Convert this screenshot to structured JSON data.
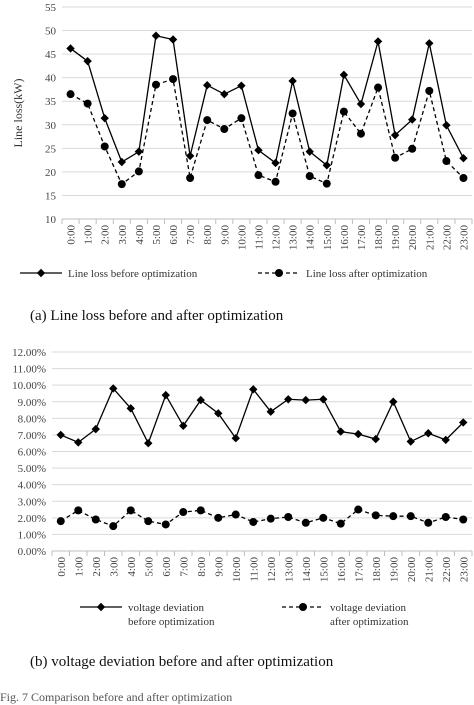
{
  "chart_data": [
    {
      "type": "line",
      "ylabel": "Line loss(kW)",
      "ylim": [
        10,
        55
      ],
      "yticks": [
        10,
        15,
        20,
        25,
        30,
        35,
        40,
        45,
        50,
        55
      ],
      "categories": [
        "0:00",
        "1:00",
        "2:00",
        "3:00",
        "4:00",
        "5:00",
        "6:00",
        "7:00",
        "8:00",
        "9:00",
        "10:00",
        "11:00",
        "12:00",
        "13:00",
        "14:00",
        "15:00",
        "16:00",
        "17:00",
        "18:00",
        "19:00",
        "20:00",
        "21:00",
        "22:00",
        "23:00"
      ],
      "series": [
        {
          "name": "Line loss before optimization",
          "style": "solid",
          "marker": "diamond",
          "values": [
            46.2,
            43.5,
            31.4,
            22.1,
            24.3,
            48.9,
            48.1,
            23.4,
            38.4,
            36.5,
            38.3,
            24.6,
            21.9,
            39.3,
            24.3,
            21.4,
            40.6,
            34.4,
            47.7,
            27.8,
            31.1,
            47.3,
            29.9,
            22.9
          ]
        },
        {
          "name": "Line loss after optimization",
          "style": "dashed",
          "marker": "circle",
          "values": [
            36.5,
            34.5,
            25.4,
            17.4,
            20.1,
            38.5,
            39.7,
            18.7,
            31.0,
            29.1,
            31.4,
            19.3,
            17.9,
            32.4,
            19.1,
            17.5,
            32.8,
            28.1,
            37.9,
            23.0,
            24.9,
            37.2,
            22.3,
            18.7
          ]
        }
      ],
      "legend_position": "bottom",
      "caption": "(a) Line loss before and after optimization"
    },
    {
      "type": "line",
      "ylabel": "",
      "ylim": [
        0,
        12
      ],
      "yticks": [
        "0.00%",
        "1.00%",
        "2.00%",
        "3.00%",
        "4.00%",
        "5.00%",
        "6.00%",
        "7.00%",
        "8.00%",
        "9.00%",
        "10.00%",
        "11.00%",
        "12.00%"
      ],
      "categories": [
        "0:00",
        "1:00",
        "2:00",
        "3:00",
        "4:00",
        "5:00",
        "6:00",
        "7:00",
        "8:00",
        "9:00",
        "10:00",
        "11:00",
        "12:00",
        "13:00",
        "14:00",
        "15:00",
        "16:00",
        "17:00",
        "18:00",
        "19:00",
        "20:00",
        "21:00",
        "22:00",
        "23:00"
      ],
      "series": [
        {
          "name_lines": [
            "voltage deviation",
            "before optimization"
          ],
          "style": "solid",
          "marker": "diamond",
          "values": [
            7.0,
            6.55,
            7.35,
            9.8,
            8.6,
            6.5,
            9.4,
            7.55,
            9.1,
            8.3,
            6.8,
            9.75,
            8.4,
            9.15,
            9.1,
            9.15,
            7.2,
            7.05,
            6.75,
            9.0,
            6.6,
            7.1,
            6.7,
            7.75
          ]
        },
        {
          "name_lines": [
            "voltage deviation",
            "after optimization"
          ],
          "style": "dashed",
          "marker": "circle",
          "values": [
            1.8,
            2.45,
            1.9,
            1.5,
            2.45,
            1.8,
            1.6,
            2.35,
            2.45,
            2.0,
            2.2,
            1.75,
            1.95,
            2.05,
            1.7,
            2.0,
            1.65,
            2.5,
            2.15,
            2.1,
            2.1,
            1.7,
            2.05,
            1.9
          ]
        }
      ],
      "legend_position": "bottom",
      "caption": "(b) voltage deviation before and after optimization"
    }
  ],
  "footer_cut_text": "Fig. 7   Comparison before and after optimization"
}
